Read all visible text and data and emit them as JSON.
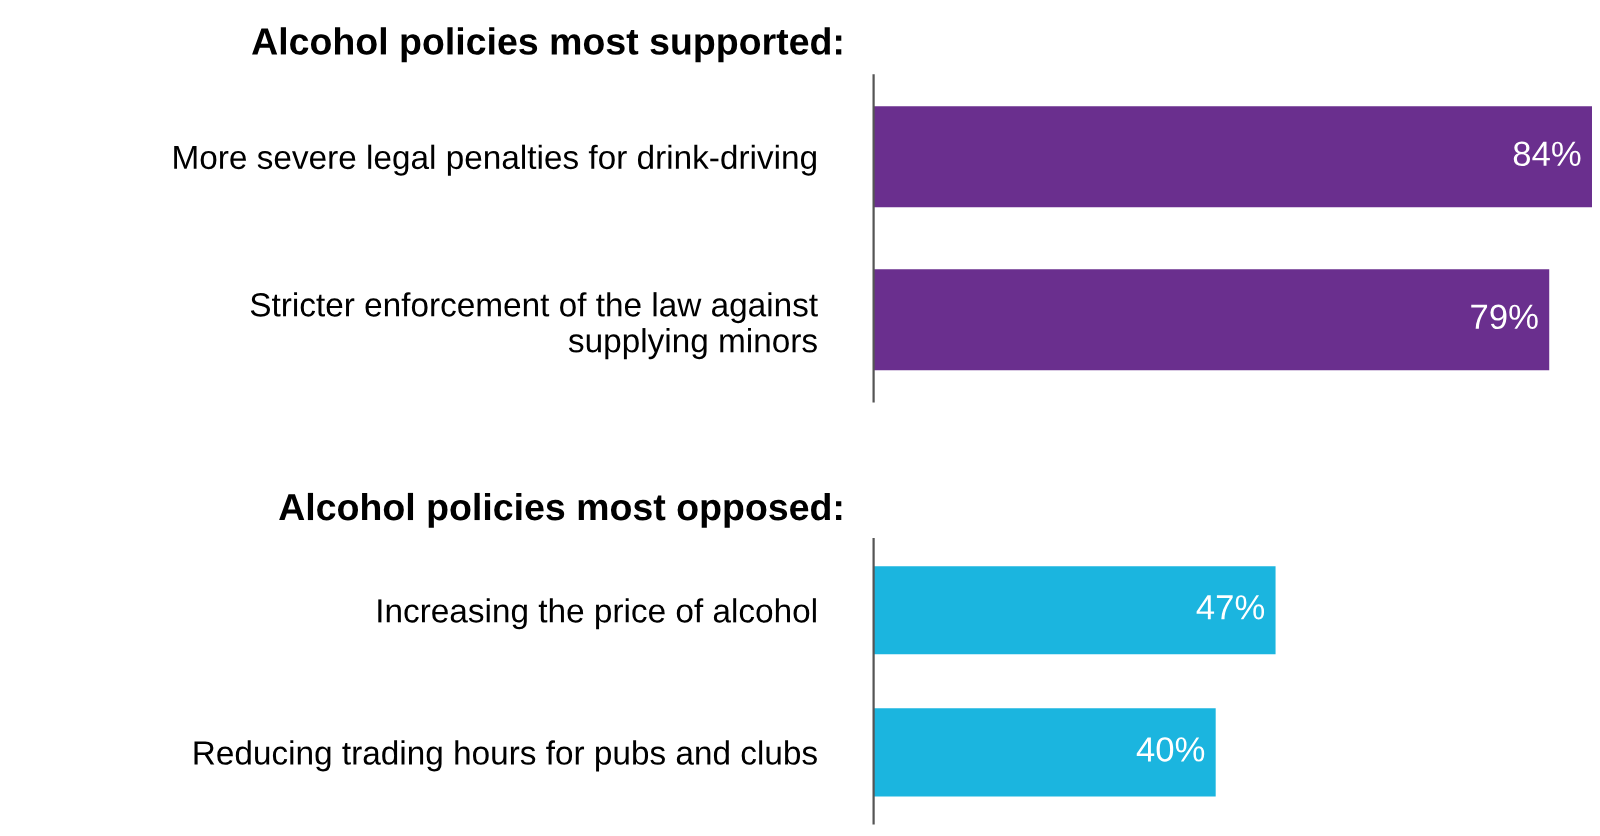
{
  "chart_data": [
    {
      "type": "bar",
      "orientation": "horizontal",
      "title": "Alcohol policies most supported:",
      "categories": [
        "More severe legal penalties for drink-driving",
        "Stricter enforcement of the law against\nsupplying minors"
      ],
      "values": [
        84,
        79
      ],
      "value_labels": [
        "84%",
        "79%"
      ],
      "color": "#6a2f8e",
      "tick_labels": "y",
      "grid": false,
      "legend": false
    },
    {
      "type": "bar",
      "orientation": "horizontal",
      "title": "Alcohol policies most opposed:",
      "categories": [
        "Increasing the price of alcohol",
        "Reducing trading hours for pubs and clubs"
      ],
      "values": [
        47,
        40
      ],
      "value_labels": [
        "47%",
        "40%"
      ],
      "color": "#1bb5df",
      "tick_labels": "y",
      "grid": false,
      "legend": false
    }
  ]
}
